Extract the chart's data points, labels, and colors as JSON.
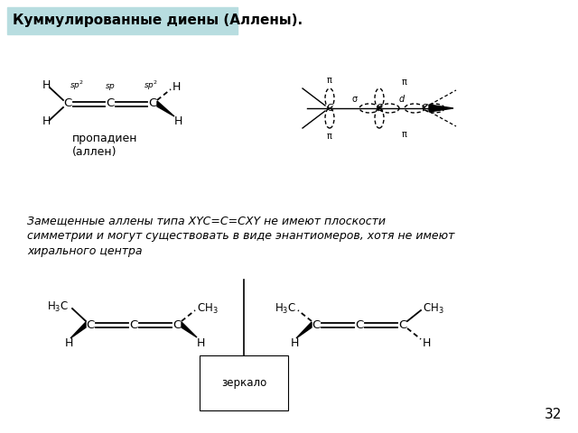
{
  "title": "Куммулированные диены (Аллены).",
  "title_bg": "#b8dde0",
  "body_text_line1": "Замещенные аллены типа XYC=C=CXY не имеют плоскости",
  "body_text_line2": "симметрии и могут существовать в виде энантиомеров, хотя не имеют",
  "body_text_line3": "хирального центра",
  "label_propadiene": "пропадиен\n(аллен)",
  "label_zerkalo": "зеркало",
  "page_number": "32",
  "bg_color": "#ffffff"
}
